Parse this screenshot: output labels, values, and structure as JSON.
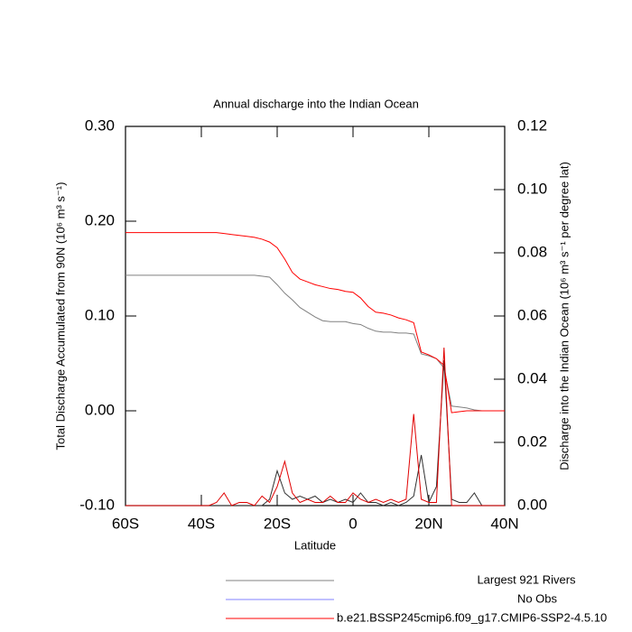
{
  "chart_data": {
    "type": "line",
    "title": "Annual discharge into the Indian Ocean",
    "xlabel": "Latitude",
    "ylabel": "Total Discharge Accumulated from 90N (10⁶ m³ s⁻¹)",
    "y2label": "Discharge into the Indian Ocean (10⁶ m³ s⁻¹ per degree lat)",
    "x": [
      -60,
      -58,
      -56,
      -54,
      -52,
      -50,
      -48,
      -46,
      -44,
      -42,
      -40,
      -38,
      -36,
      -34,
      -32,
      -30,
      -28,
      -26,
      -24,
      -22,
      -20,
      -18,
      -16,
      -14,
      -12,
      -10,
      -8,
      -6,
      -4,
      -2,
      0,
      2,
      4,
      6,
      8,
      10,
      12,
      14,
      16,
      18,
      20,
      22,
      24,
      26,
      28,
      30,
      32,
      34,
      36,
      38,
      40
    ],
    "xlim": [
      -60,
      40
    ],
    "xticks": [
      {
        "value": -60,
        "label": "60S"
      },
      {
        "value": -40,
        "label": "40S"
      },
      {
        "value": -20,
        "label": "20S"
      },
      0,
      {
        "value": 20,
        "label": "20N"
      },
      {
        "value": 40,
        "label": "40N"
      }
    ],
    "ylim": [
      -0.1,
      0.3
    ],
    "yticks": [
      {
        "value": -0.1,
        "label": "-0.10"
      },
      {
        "value": 0,
        "label": "0.00"
      },
      {
        "value": 0.1,
        "label": "0.10"
      },
      {
        "value": 0.2,
        "label": "0.20"
      },
      {
        "value": 0.3,
        "label": "0.30"
      }
    ],
    "y2lim": [
      0,
      0.12
    ],
    "y2ticks": [
      {
        "value": 0,
        "label": "0.00"
      },
      {
        "value": 0.02,
        "label": "0.02"
      },
      {
        "value": 0.04,
        "label": "0.04"
      },
      {
        "value": 0.06,
        "label": "0.06"
      },
      {
        "value": 0.08,
        "label": "0.08"
      },
      {
        "value": 0.1,
        "label": "0.10"
      },
      {
        "value": 0.12,
        "label": "0.12"
      }
    ],
    "series": [
      {
        "name": "Largest 921 Rivers",
        "color": "#808080",
        "values": [
          0.143,
          0.143,
          0.143,
          0.143,
          0.143,
          0.143,
          0.143,
          0.143,
          0.143,
          0.143,
          0.143,
          0.143,
          0.143,
          0.143,
          0.143,
          0.143,
          0.143,
          0.143,
          0.142,
          0.141,
          0.133,
          0.124,
          0.117,
          0.109,
          0.104,
          0.099,
          0.095,
          0.094,
          0.094,
          0.094,
          0.092,
          0.091,
          0.087,
          0.084,
          0.083,
          0.083,
          0.082,
          0.082,
          0.081,
          0.06,
          0.058,
          0.055,
          0.045,
          0.005,
          0.004,
          0.003,
          0.001,
          0,
          0,
          0,
          0
        ]
      },
      {
        "name": "No Obs",
        "color": "#8080ff",
        "values": [
          null,
          null,
          null,
          null,
          null,
          null,
          null,
          null,
          null,
          null,
          null,
          null,
          null,
          null,
          null,
          null,
          null,
          null,
          null,
          null,
          null,
          null,
          null,
          null,
          null,
          null,
          null,
          null,
          null,
          null,
          null,
          null,
          null,
          null,
          null,
          null,
          null,
          null,
          null,
          null,
          null,
          null,
          null,
          null,
          null,
          null,
          null,
          null,
          null,
          null,
          null
        ]
      },
      {
        "name": "b.e21.BSSP245cmip6.f09_g17.CMIP6-SSP2-4.5.10",
        "color": "#ff0000",
        "values": [
          0.188,
          0.188,
          0.188,
          0.188,
          0.188,
          0.188,
          0.188,
          0.188,
          0.188,
          0.188,
          0.188,
          0.188,
          0.188,
          0.187,
          0.186,
          0.185,
          0.184,
          0.183,
          0.181,
          0.178,
          0.172,
          0.16,
          0.146,
          0.139,
          0.136,
          0.133,
          0.131,
          0.129,
          0.128,
          0.126,
          0.125,
          0.119,
          0.11,
          0.104,
          0.103,
          0.101,
          0.098,
          0.096,
          0.093,
          0.062,
          0.059,
          0.055,
          0.048,
          -0.002,
          -0.001,
          0,
          0,
          0,
          0,
          0,
          0
        ]
      },
      {
        "color": "#303030",
        "axis": "y2",
        "values": [
          0,
          0,
          0,
          0,
          0,
          0,
          0,
          0,
          0,
          0,
          0,
          0,
          0,
          0,
          0,
          0,
          0,
          0,
          0,
          0.002,
          0.011,
          0.004,
          0.002,
          0.003,
          0.002,
          0.003,
          0.001,
          0.002,
          0.001,
          0.002,
          0.001,
          0.004,
          0.001,
          0.001,
          0,
          0.001,
          0,
          0.001,
          0.003,
          0.016,
          0.001,
          0.006,
          0.046,
          0.002,
          0.001,
          0.001,
          0.004,
          0,
          0,
          0,
          0
        ]
      },
      {
        "color": "#e00000",
        "axis": "y2",
        "values": [
          0,
          0,
          0,
          0,
          0,
          0,
          0,
          0,
          0,
          0,
          0,
          0,
          0.001,
          0.004,
          0,
          0.001,
          0.001,
          0,
          0.003,
          0.001,
          0.006,
          0.014,
          0.004,
          0.001,
          0.002,
          0.001,
          0.001,
          0.003,
          0.001,
          0.001,
          0.004,
          0.002,
          0.001,
          0.002,
          0.001,
          0.002,
          0.001,
          0.002,
          0.029,
          0.002,
          0.001,
          0.001,
          0.05,
          0,
          0,
          0,
          0,
          0,
          0,
          0,
          0
        ]
      }
    ]
  }
}
